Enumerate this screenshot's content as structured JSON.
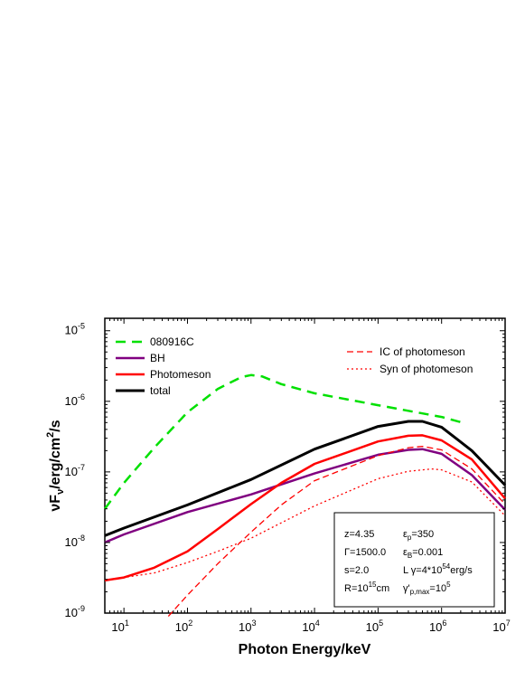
{
  "chart_data": {
    "type": "line",
    "xlabel": "Photon Energy/keV",
    "ylabel": "νF",
    "ylabel_sub": "ν",
    "ylabel_tail": "/erg/cm",
    "ylabel_sup": "2",
    "ylabel_end": "/s",
    "x_scale": "log",
    "y_scale": "log",
    "xlim": [
      5,
      10000000
    ],
    "ylim": [
      1e-09,
      1.5e-05
    ],
    "x_ticks": [
      {
        "value": 10,
        "base": "10",
        "exp": "1"
      },
      {
        "value": 100,
        "base": "10",
        "exp": "2"
      },
      {
        "value": 1000,
        "base": "10",
        "exp": "3"
      },
      {
        "value": 10000,
        "base": "10",
        "exp": "4"
      },
      {
        "value": 100000,
        "base": "10",
        "exp": "5"
      },
      {
        "value": 1000000,
        "base": "10",
        "exp": "6"
      },
      {
        "value": 10000000,
        "base": "10",
        "exp": "7"
      }
    ],
    "y_ticks": [
      {
        "value": 1e-09,
        "base": "10",
        "exp": "-9"
      },
      {
        "value": 1e-08,
        "base": "10",
        "exp": "-8"
      },
      {
        "value": 1e-07,
        "base": "10",
        "exp": "-7"
      },
      {
        "value": 1e-06,
        "base": "10",
        "exp": "-6"
      },
      {
        "value": 1e-05,
        "base": "10",
        "exp": "-5"
      }
    ],
    "grid": false,
    "series": [
      {
        "name": "080916C",
        "color": "#00e000",
        "dash": "11,7",
        "width": 2.5,
        "x": [
          5,
          10,
          30,
          100,
          300,
          700,
          1000,
          1500,
          3000,
          10000,
          100000,
          1000000,
          2300000
        ],
        "y": [
          3e-08,
          7e-08,
          2.2e-07,
          7e-07,
          1.5e-06,
          2.2e-06,
          2.35e-06,
          2.25e-06,
          1.75e-06,
          1.3e-06,
          8.8e-07,
          6e-07,
          4.9e-07
        ]
      },
      {
        "name": "BH",
        "color": "#800080",
        "dash": "",
        "width": 2.5,
        "x": [
          5,
          10,
          100,
          1000,
          10000,
          100000,
          300000,
          500000,
          1000000,
          3000000,
          10000000
        ],
        "y": [
          1e-08,
          1.3e-08,
          2.7e-08,
          4.8e-08,
          9.5e-08,
          1.75e-07,
          2.05e-07,
          2.1e-07,
          1.8e-07,
          9e-08,
          2.9e-08
        ]
      },
      {
        "name": "Photomeson",
        "color": "#ff0000",
        "dash": "",
        "width": 2.5,
        "x": [
          5,
          10,
          30,
          100,
          300,
          1000,
          3000,
          10000,
          100000,
          300000,
          500000,
          1000000,
          3000000,
          10000000
        ],
        "y": [
          2.9e-09,
          3.2e-09,
          4.4e-09,
          7.5e-09,
          1.55e-08,
          3.5e-08,
          7e-08,
          1.3e-07,
          2.7e-07,
          3.25e-07,
          3.3e-07,
          2.8e-07,
          1.5e-07,
          4.2e-08
        ]
      },
      {
        "name": "total",
        "color": "#000000",
        "dash": "",
        "width": 3,
        "x": [
          5,
          10,
          100,
          1000,
          10000,
          100000,
          300000,
          500000,
          1000000,
          3000000,
          10000000
        ],
        "y": [
          1.25e-08,
          1.6e-08,
          3.4e-08,
          7.8e-08,
          2.1e-07,
          4.4e-07,
          5.2e-07,
          5.2e-07,
          4.3e-07,
          2e-07,
          6.5e-08
        ]
      },
      {
        "name": "IC of photomeson",
        "color": "#ff0000",
        "dash": "7,4",
        "width": 1.3,
        "x": [
          50,
          100,
          300,
          1000,
          3000,
          10000,
          100000,
          300000,
          500000,
          1000000,
          3000000,
          10000000
        ],
        "y": [
          9e-10,
          1.8e-09,
          5e-09,
          1.4e-08,
          3.4e-08,
          7.5e-08,
          1.7e-07,
          2.2e-07,
          2.3e-07,
          2.05e-07,
          1.1e-07,
          3.5e-08
        ]
      },
      {
        "name": "Syn of photomeson",
        "color": "#ff0000",
        "dash": "2,3",
        "width": 1.3,
        "x": [
          5,
          30,
          100,
          300,
          1000,
          10000,
          100000,
          300000,
          700000,
          1000000,
          3000000,
          10000000
        ],
        "y": [
          2.9e-09,
          3.7e-09,
          5.2e-09,
          7.5e-09,
          1.15e-08,
          3.3e-08,
          8e-08,
          1.02e-07,
          1.1e-07,
          1.07e-07,
          7.2e-08,
          2.4e-08
        ]
      }
    ],
    "legend": {
      "placement_left": "top-left",
      "placement_right": "top-right",
      "left_entries": [
        "080916C",
        "BH",
        "Photomeson",
        "total"
      ],
      "right_entries": [
        "IC of photomeson",
        "Syn of photomeson"
      ]
    },
    "annotation": {
      "placement": "bottom-right",
      "rows": [
        [
          {
            "parts": [
              {
                "t": "z=4.35"
              }
            ]
          },
          {
            "parts": [
              {
                "t": "ε"
              },
              {
                "t": "p",
                "s": "sub"
              },
              {
                "t": "=350"
              }
            ]
          }
        ],
        [
          {
            "parts": [
              {
                "t": "Γ=1500.0"
              }
            ]
          },
          {
            "parts": [
              {
                "t": "ε"
              },
              {
                "t": "B",
                "s": "sub"
              },
              {
                "t": "=0.001"
              }
            ]
          }
        ],
        [
          {
            "parts": [
              {
                "t": "s=2.0"
              }
            ]
          },
          {
            "parts": [
              {
                "t": "L γ=4*10"
              },
              {
                "t": "54",
                "s": "sup"
              },
              {
                "t": "erg/s"
              }
            ]
          }
        ],
        [
          {
            "parts": [
              {
                "t": "R=10"
              },
              {
                "t": "15",
                "s": "sup"
              },
              {
                "t": "cm"
              }
            ]
          },
          {
            "parts": [
              {
                "t": "γ'"
              },
              {
                "t": "p,max",
                "s": "sub"
              },
              {
                "t": "=10"
              },
              {
                "t": "5",
                "s": "sup"
              }
            ]
          }
        ]
      ]
    }
  }
}
